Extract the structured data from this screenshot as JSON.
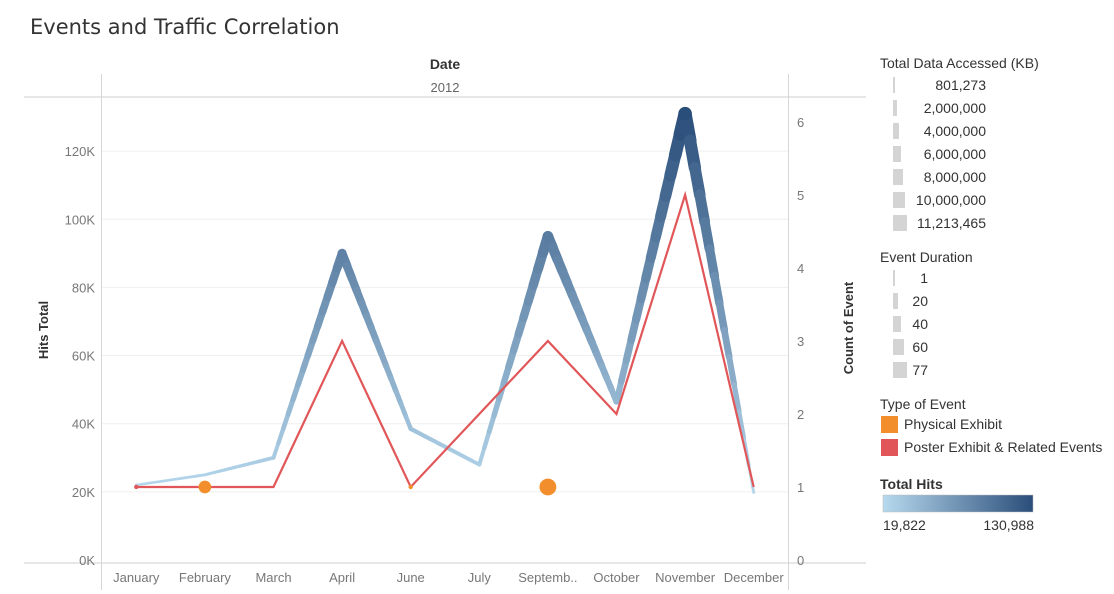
{
  "chart_data": {
    "type": "line",
    "title": "Events and Traffic Correlation",
    "column_header": "Date",
    "column_value": "2012",
    "categories": [
      "January",
      "February",
      "March",
      "April",
      "June",
      "July",
      "Septemb..",
      "October",
      "November",
      "December"
    ],
    "y_left": {
      "label": "Hits Total",
      "ticks": [
        "0K",
        "20K",
        "40K",
        "60K",
        "80K",
        "100K",
        "120K"
      ],
      "range": [
        0,
        135000
      ]
    },
    "y_right": {
      "label": "Count of Event",
      "ticks": [
        "0",
        "1",
        "2",
        "3",
        "4",
        "5",
        "6"
      ],
      "range": [
        0,
        6.3
      ]
    },
    "series": [
      {
        "name": "Total Hits",
        "axis": "left",
        "values": [
          22000,
          25000,
          30000,
          90000,
          38500,
          28000,
          95000,
          46500,
          130988,
          19822
        ],
        "data_accessed_kb": [
          801273,
          1200000,
          2000000,
          7000000,
          2500000,
          2000000,
          8500000,
          4000000,
          11213465,
          801273
        ]
      },
      {
        "name": "Poster Exhibit & Related Events",
        "axis": "right",
        "values": [
          1,
          null,
          1,
          3,
          1,
          null,
          3,
          2,
          5,
          1
        ]
      }
    ],
    "points": [
      {
        "category": "January",
        "count": 1,
        "type": "Poster Exhibit & Related Events",
        "duration": 1
      },
      {
        "category": "February",
        "count": 1,
        "type": "Physical Exhibit",
        "duration": 40
      },
      {
        "category": "June",
        "count": 1,
        "type": "Physical Exhibit",
        "duration": 1
      },
      {
        "category": "Septemb..",
        "count": 1,
        "type": "Physical Exhibit",
        "duration": 60
      }
    ],
    "legend": {
      "size_title": "Total Data Accessed (KB)",
      "size_items": [
        "801,273",
        "2,000,000",
        "4,000,000",
        "6,000,000",
        "8,000,000",
        "10,000,000",
        "11,213,465"
      ],
      "duration_title": "Event Duration",
      "duration_items": [
        "1",
        "20",
        "40",
        "60",
        "77"
      ],
      "type_title": "Type of Event",
      "type_items": [
        {
          "label": "Physical Exhibit",
          "color": "#F28E2B"
        },
        {
          "label": "Poster Exhibit & Related Events",
          "color": "#E15759"
        }
      ],
      "color_title": "Total Hits",
      "color_min": "19,822",
      "color_max": "130,988",
      "color_start": "#B7D9EE",
      "color_end": "#2A4E7A"
    },
    "grid": true
  }
}
